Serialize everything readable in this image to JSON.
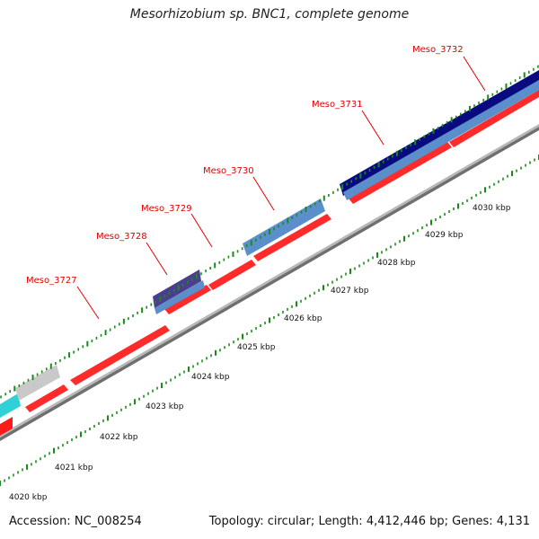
{
  "title": "Mesorhizobium sp. BNC1, complete genome",
  "footer": {
    "accession_label": "Accession:",
    "accession": "NC_008254",
    "topology_label": "Topology:",
    "topology": "circular",
    "length_label": "Length:",
    "length": "4,412,446 bp",
    "genes_label": "Genes:",
    "genes": "4,131"
  },
  "colors": {
    "forward_strand": "#ff1a1a",
    "cds_blue": "#4f86c6",
    "cds_navy": "#0a0a80",
    "cds_purple": "#4a3f8c",
    "cds_gray": "#c8c8c8",
    "cds_cyan": "#20c6cc",
    "backbone": "#888888",
    "ticks": "#1a8a1a",
    "gene_label": "#e00000"
  },
  "ticks": [
    {
      "kbp": 4020,
      "label": "4020 kbp"
    },
    {
      "kbp": 4021,
      "label": "4021 kbp"
    },
    {
      "kbp": 4022,
      "label": "4022 kbp"
    },
    {
      "kbp": 4023,
      "label": "4023 kbp"
    },
    {
      "kbp": 4024,
      "label": "4024 kbp"
    },
    {
      "kbp": 4025,
      "label": "4025 kbp"
    },
    {
      "kbp": 4026,
      "label": "4026 kbp"
    },
    {
      "kbp": 4027,
      "label": "4027 kbp"
    },
    {
      "kbp": 4028,
      "label": "4028 kbp"
    },
    {
      "kbp": 4029,
      "label": "4029 kbp"
    },
    {
      "kbp": 4030,
      "label": "4030 kbp"
    }
  ],
  "gene_labels": [
    "Meso_3727",
    "Meso_3728",
    "Meso_3729",
    "Meso_3730",
    "Meso_3731",
    "Meso_3732"
  ]
}
